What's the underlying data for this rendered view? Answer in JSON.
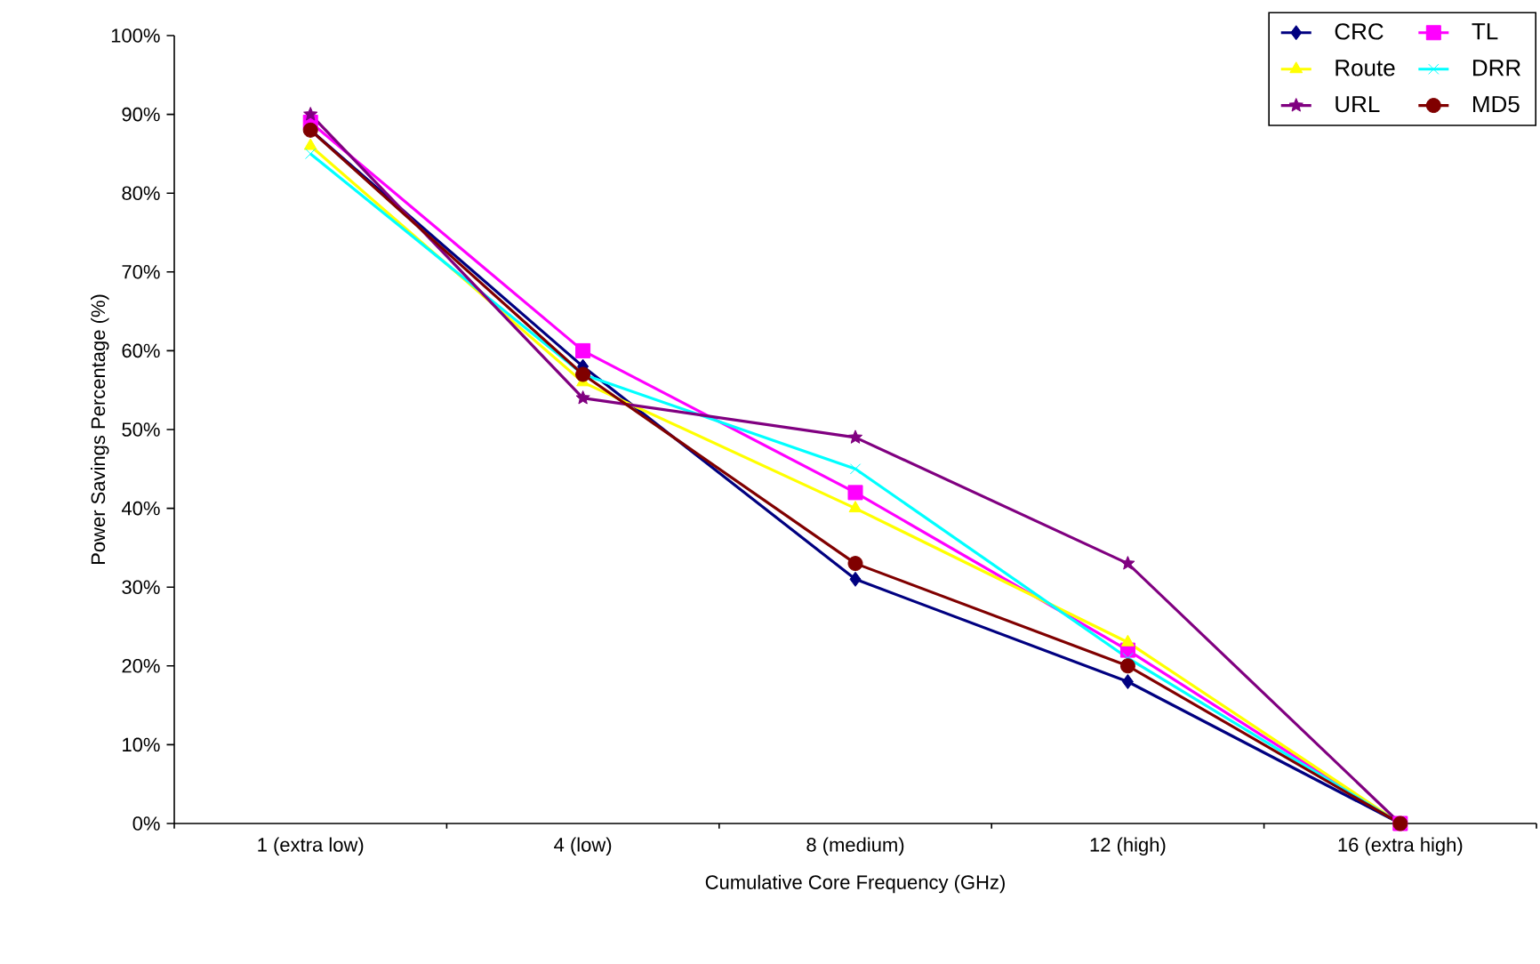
{
  "chart_data": {
    "type": "line",
    "xlabel": "Cumulative Core Frequency (GHz)",
    "ylabel": "Power Savings Percentage (%)",
    "categories": [
      "1 (extra low)",
      "4 (low)",
      "8 (medium)",
      "12 (high)",
      "16 (extra high)"
    ],
    "ylim": [
      0,
      100
    ],
    "yticks": [
      {
        "value": 0,
        "label": "0%"
      },
      {
        "value": 10,
        "label": "10%"
      },
      {
        "value": 20,
        "label": "20%"
      },
      {
        "value": 30,
        "label": "30%"
      },
      {
        "value": 40,
        "label": "40%"
      },
      {
        "value": 50,
        "label": "50%"
      },
      {
        "value": 60,
        "label": "60%"
      },
      {
        "value": 70,
        "label": "70%"
      },
      {
        "value": 80,
        "label": "80%"
      },
      {
        "value": 90,
        "label": "90%"
      },
      {
        "value": 100,
        "label": "100%"
      }
    ],
    "grid": false,
    "legend": "top right",
    "line_style": "solid",
    "series": [
      {
        "name": "CRC",
        "color": "#000080",
        "marker": "diamond",
        "values": [
          88,
          58,
          31,
          18,
          0
        ]
      },
      {
        "name": "TL",
        "color": "#ff00ff",
        "marker": "square",
        "values": [
          89,
          60,
          42,
          22,
          0
        ]
      },
      {
        "name": "Route",
        "color": "#ffff00",
        "marker": "triangle",
        "values": [
          86,
          56,
          40,
          23,
          0
        ]
      },
      {
        "name": "DRR",
        "color": "#00ffff",
        "marker": "cross",
        "values": [
          85,
          57,
          45,
          21,
          0
        ]
      },
      {
        "name": "URL",
        "color": "#800080",
        "marker": "star",
        "values": [
          90,
          54,
          49,
          33,
          0
        ]
      },
      {
        "name": "MD5",
        "color": "#800000",
        "marker": "circle",
        "values": [
          88,
          57,
          33,
          20,
          0
        ]
      }
    ]
  }
}
